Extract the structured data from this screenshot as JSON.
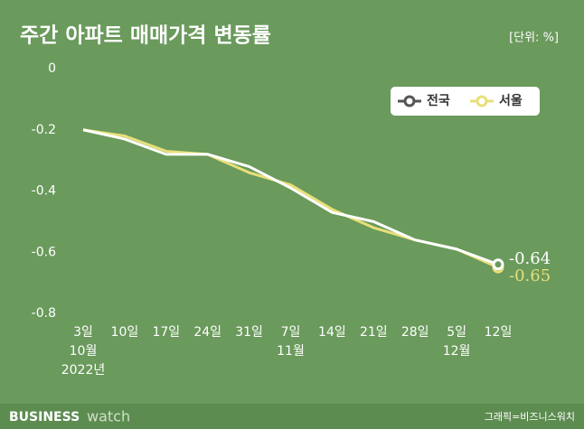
{
  "chart_data": {
    "type": "line",
    "title": "주간 아파트 매매가격 변동률",
    "unit": "[단위: %]",
    "categories": [
      [
        "3일",
        "10월",
        "2022년"
      ],
      [
        "10일"
      ],
      [
        "17일"
      ],
      [
        "24일"
      ],
      [
        "31일"
      ],
      [
        "7일",
        "11월"
      ],
      [
        "14일"
      ],
      [
        "21일"
      ],
      [
        "28일"
      ],
      [
        "5일",
        "12월"
      ],
      [
        "12일"
      ]
    ],
    "series": [
      {
        "name": "전국",
        "color": "#ffffff",
        "values": [
          -0.2,
          -0.23,
          -0.28,
          -0.28,
          -0.32,
          -0.39,
          -0.47,
          -0.5,
          -0.56,
          -0.59,
          -0.64
        ]
      },
      {
        "name": "서울",
        "color": "#e8df7a",
        "values": [
          -0.2,
          -0.22,
          -0.27,
          -0.28,
          -0.34,
          -0.38,
          -0.46,
          -0.52,
          -0.56,
          -0.59,
          -0.65
        ]
      }
    ],
    "ylim": [
      -0.8,
      0
    ],
    "yticks": [
      0,
      -0.2,
      -0.4,
      -0.6,
      -0.8
    ],
    "grid": false,
    "legend": "top-right"
  },
  "footer": {
    "brand": "BUSINESS",
    "brand_suffix": "watch",
    "credit": "그래픽=비즈니스워치"
  }
}
